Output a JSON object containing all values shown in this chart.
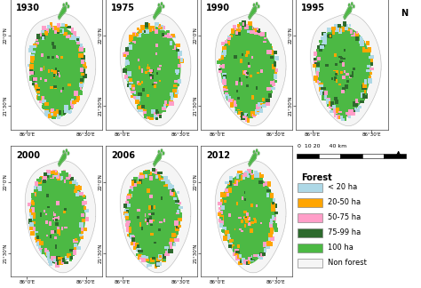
{
  "years": [
    "1930",
    "1975",
    "1990",
    "1995",
    "2000",
    "2006",
    "2012"
  ],
  "legend_title": "Forest",
  "legend_items": [
    {
      "label": "< 20 ha",
      "color": "#add8e6"
    },
    {
      "label": "20-50 ha",
      "color": "#ffa500"
    },
    {
      "label": "50-75 ha",
      "color": "#ff9ec8"
    },
    {
      "label": "75-99 ha",
      "color": "#2d6a2d"
    },
    {
      "label": "100 ha",
      "color": "#4cb944"
    },
    {
      "label": "Non forest",
      "color": "#f5f5f5"
    }
  ],
  "fig_bg": "#ffffff",
  "map_bg": "#ffffff",
  "island_fill": "#f5f5f5",
  "island_outline": "#aaaaaa",
  "forest_green_100": "#4cb944",
  "forest_green_75": "#2d6a2d",
  "forest_orange": "#ffa500",
  "forest_pink": "#ff9ec8",
  "forest_blue": "#add8e6",
  "font_year": 7,
  "font_axis": 4,
  "font_legend_title": 7,
  "font_legend": 6,
  "scale_text": "0  10 20     40 km",
  "lon_ticks_label": [
    "86°0'E",
    "86°30'E"
  ],
  "lat_ticks_label": [
    "21°30'N",
    "22°0'N"
  ]
}
